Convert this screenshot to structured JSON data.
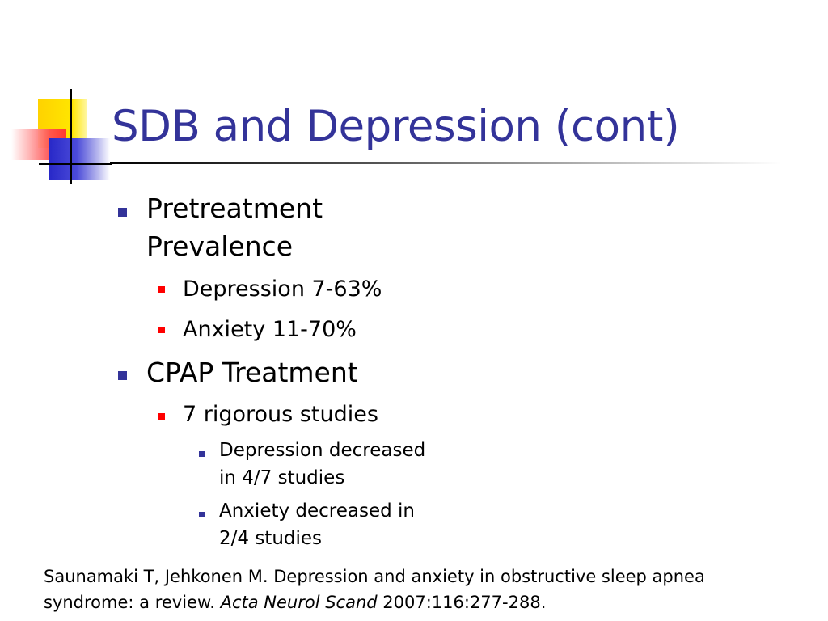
{
  "slide": {
    "title": "SDB and Depression (cont)",
    "bullets": {
      "pretreatment": {
        "line1": "Pretreatment",
        "line2": "Prevalence",
        "items": [
          "Depression 7-63%",
          "Anxiety 11-70%"
        ]
      },
      "cpap": {
        "label": "CPAP Treatment",
        "sub": "7 rigorous studies",
        "subitems": [
          {
            "line1": "Depression decreased",
            "line2": "in 4/7 studies"
          },
          {
            "line1": "Anxiety decreased in",
            "line2": "2/4 studies"
          }
        ]
      }
    },
    "citation": {
      "part1": "Saunamaki T, Jehkonen M. Depression and anxiety in obstructive sleep apnea",
      "part2": "syndrome: a review. ",
      "journal": "Acta Neurol Scand",
      "part3": " 2007:116:277-288."
    }
  },
  "colors": {
    "title": "#333399",
    "level1_bullet": "#333399",
    "level2_bullet": "#ff0000",
    "level3_bullet": "#333399"
  }
}
